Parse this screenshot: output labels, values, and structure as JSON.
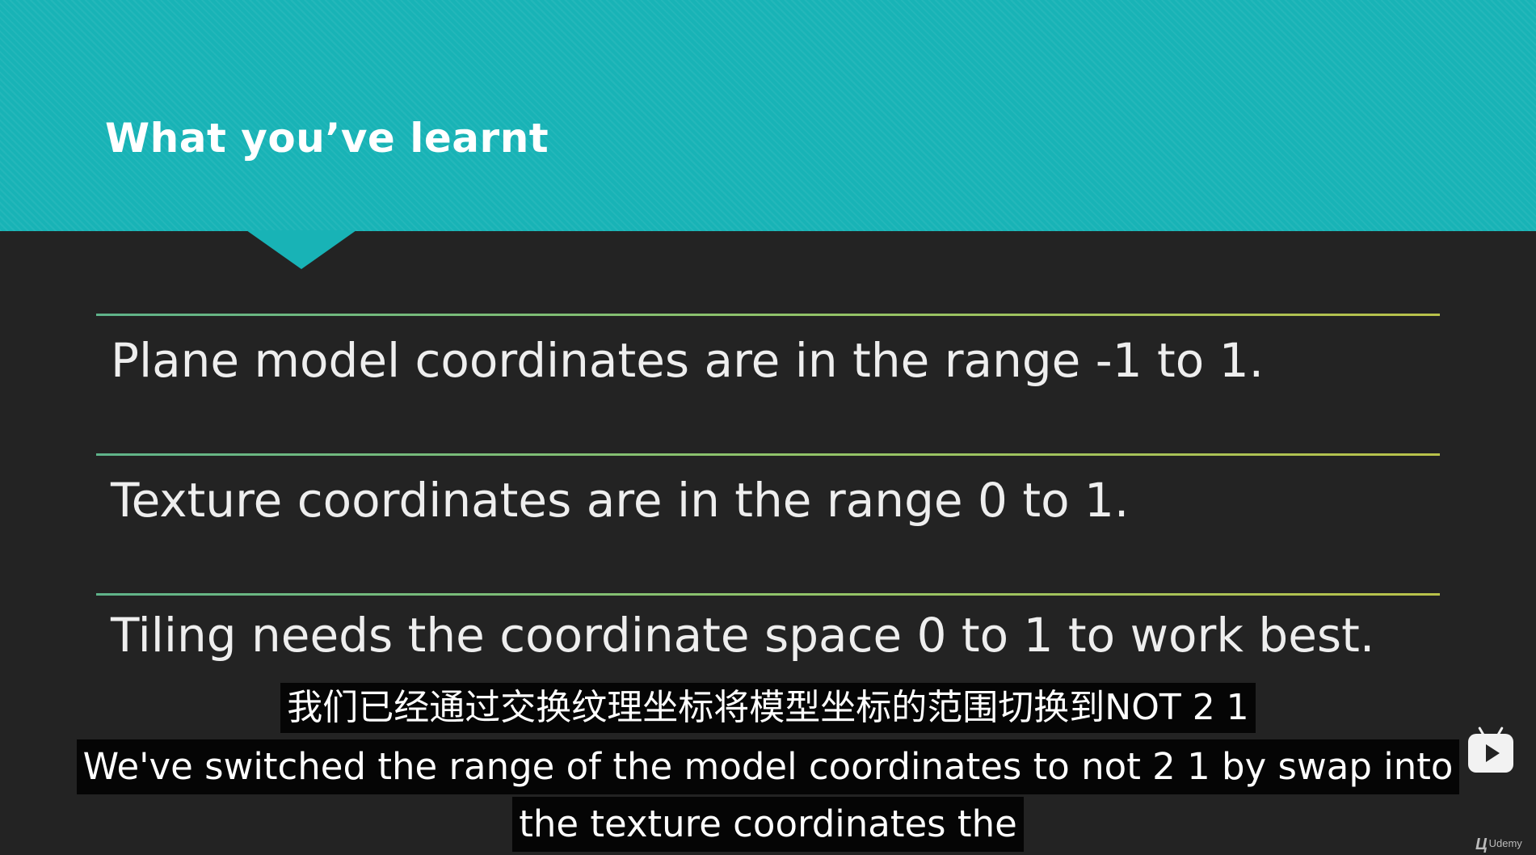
{
  "slide": {
    "title": "What you’ve learnt",
    "bullets": [
      "Plane model coordinates are in the range -1 to 1.",
      "Texture coordinates are in the range 0 to 1.",
      "Tiling needs the coordinate space 0 to 1 to work best."
    ],
    "colors": {
      "header": "#18b3b6",
      "background": "#232323",
      "divider_start": "#5fb38a",
      "divider_end": "#b9c24a"
    }
  },
  "subtitles": {
    "zh": "我们已经通过交换纹理坐标将模型坐标的范围切换到NOT 2 1",
    "en_line1": "We've switched the range of the model coordinates to not 2 1 by swap into",
    "en_line2": "the texture coordinates the"
  },
  "overlay": {
    "player_icon": "bilibili-tv-icon",
    "brand_mark": "Ц",
    "brand_text": "Udemy"
  }
}
